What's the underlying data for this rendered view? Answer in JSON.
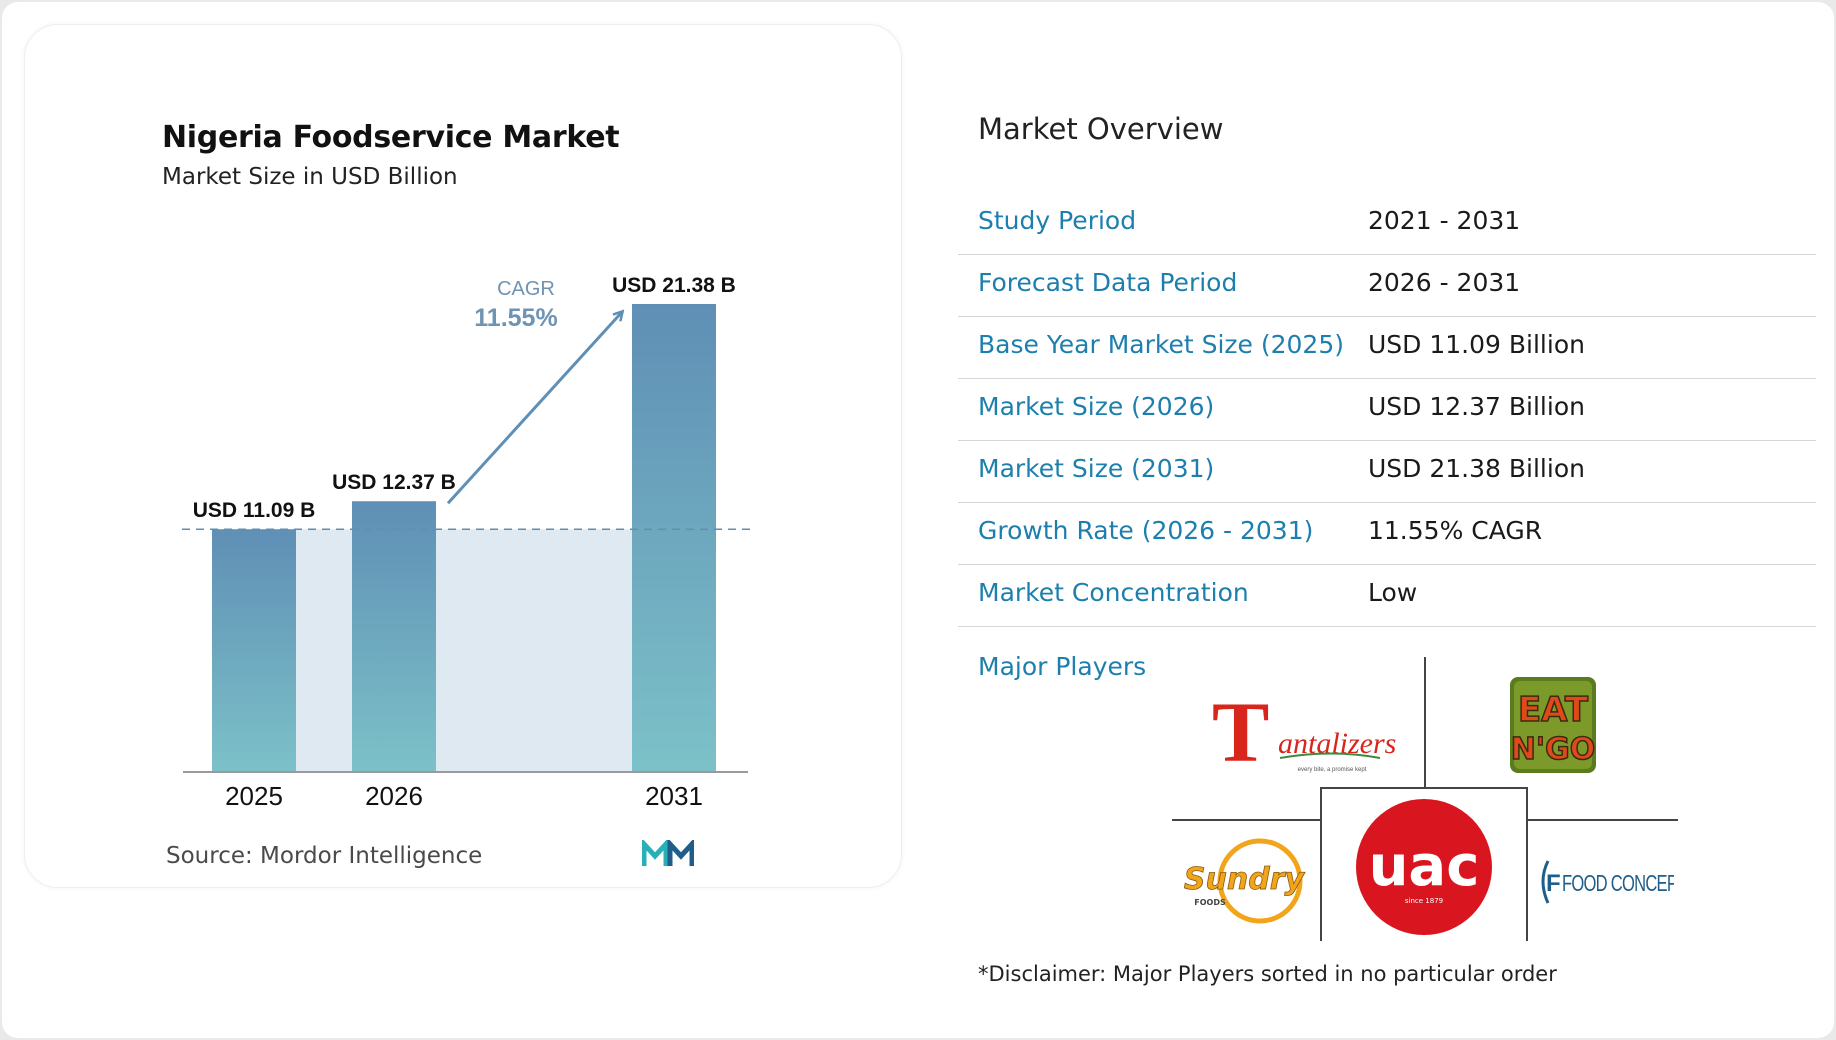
{
  "chart": {
    "title": "Nigeria Foodservice Market",
    "subtitle": "Market Size in USD Billion",
    "cagr_label": "CAGR",
    "cagr_value": "11.55%",
    "source": "Source:  Mordor Intelligence"
  },
  "chart_data": {
    "type": "bar",
    "categories": [
      "2025",
      "2026",
      "2031"
    ],
    "values": [
      11.09,
      12.37,
      21.38
    ],
    "data_labels": [
      "USD 11.09 B",
      "USD 12.37 B",
      "USD 21.38 B"
    ],
    "title": "Nigeria Foodservice Market",
    "subtitle": "Market Size in USD Billion",
    "xlabel": "",
    "ylabel": "",
    "ylim": [
      0,
      21.38
    ],
    "grid": false,
    "annotations": [
      "CAGR",
      "11.55%"
    ],
    "colors": {
      "bar_top": "#5f8fb5",
      "bar_bottom": "#7cc1c8",
      "band": "#dfe9f2",
      "arrow": "#5f8fb5"
    }
  },
  "overview": {
    "title": "Market Overview",
    "rows": [
      {
        "label": "Study Period",
        "value": "2021 - 2031"
      },
      {
        "label": "Forecast Data Period",
        "value": "2026 - 2031"
      },
      {
        "label": "Base Year Market Size (2025)",
        "value": "USD 11.09 Billion"
      },
      {
        "label": "Market Size (2026)",
        "value": "USD 12.37 Billion"
      },
      {
        "label": "Market Size (2031)",
        "value": "USD 21.38 Billion"
      },
      {
        "label": "Growth Rate (2026 - 2031)",
        "value": "11.55% CAGR"
      },
      {
        "label": "Market Concentration",
        "value": "Low"
      }
    ],
    "players_label": "Major Players",
    "players": [
      {
        "name": "Tantalizers",
        "logo_text": "antalizers",
        "logo_letter": "T",
        "tagline": "every bite, a promise kept"
      },
      {
        "name": "Eat N' Go",
        "logo_text_top": "EAT",
        "logo_text_bottom": "N'GO"
      },
      {
        "name": "Sundry Foods",
        "logo_text": "Sundry",
        "sub": "FOODS"
      },
      {
        "name": "UAC",
        "logo_text": "uac",
        "sub": "since 1879"
      },
      {
        "name": "Food Concepts",
        "logo_text": "FOOD CONCEPTS"
      }
    ],
    "disclaimer": "*Disclaimer: Major Players sorted in no particular order"
  },
  "colors": {
    "accent": "#1c7fae",
    "uac_red": "#d9161f",
    "tantalizers_red": "#d8261c",
    "sundry_orange": "#f2a51a",
    "eatngo_green": "#5a7b1e"
  }
}
